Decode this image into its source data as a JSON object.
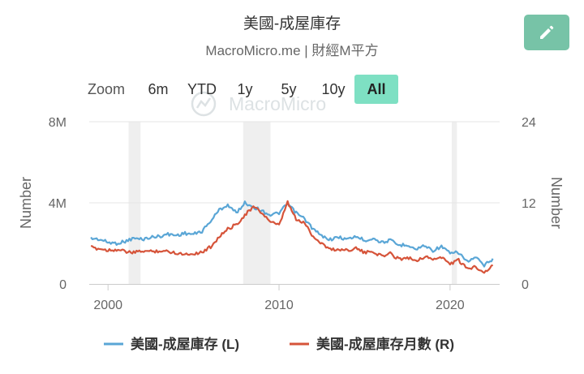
{
  "header": {
    "title": "美國-成屋庫存",
    "subtitle": "MacroMicro.me | 財經M平方"
  },
  "toolbar": {
    "zoom_label": "Zoom",
    "buttons": [
      "6m",
      "YTD",
      "1y",
      "5y",
      "10y",
      "All"
    ],
    "active": "All",
    "active_color": "#7ee0c3"
  },
  "watermark": "MacroMicro",
  "colors": {
    "left_series": "#5aa6d6",
    "right_series": "#d6543a",
    "recession_band": "#efefef",
    "edit_button": "#77c3a7"
  },
  "chart_data": {
    "type": "line",
    "x_label_years": [
      "2000",
      "2010",
      "2020"
    ],
    "x_range": [
      1998.9,
      2022.9
    ],
    "left_axis": {
      "title": "Number",
      "ticks": [
        "0",
        "4M",
        "8M"
      ],
      "range": [
        0,
        8000000
      ]
    },
    "right_axis": {
      "title": "Number",
      "ticks": [
        "0",
        "12",
        "24"
      ],
      "range": [
        0,
        24
      ]
    },
    "recession_bands": [
      [
        2001.2,
        2001.9
      ],
      [
        2007.9,
        2009.5
      ],
      [
        2020.1,
        2020.4
      ]
    ],
    "legend_position": "bottom",
    "series": [
      {
        "name": "美國-成屋庫存 (L)",
        "axis": "left",
        "points": [
          [
            1999.0,
            2250000
          ],
          [
            1999.5,
            2200000
          ],
          [
            2000.0,
            2050000
          ],
          [
            2000.5,
            2000000
          ],
          [
            2001.0,
            2100000
          ],
          [
            2001.5,
            2250000
          ],
          [
            2002.0,
            2200000
          ],
          [
            2002.5,
            2300000
          ],
          [
            2003.0,
            2350000
          ],
          [
            2003.5,
            2450000
          ],
          [
            2004.0,
            2400000
          ],
          [
            2004.5,
            2500000
          ],
          [
            2005.0,
            2450000
          ],
          [
            2005.5,
            2600000
          ],
          [
            2006.0,
            3100000
          ],
          [
            2006.5,
            3650000
          ],
          [
            2007.0,
            3900000
          ],
          [
            2007.5,
            3500000
          ],
          [
            2008.0,
            4000000
          ],
          [
            2008.5,
            3800000
          ],
          [
            2009.0,
            3600000
          ],
          [
            2009.5,
            3400000
          ],
          [
            2010.0,
            3500000
          ],
          [
            2010.5,
            3950000
          ],
          [
            2011.0,
            3500000
          ],
          [
            2011.5,
            3200000
          ],
          [
            2012.0,
            2700000
          ],
          [
            2012.5,
            2350000
          ],
          [
            2013.0,
            2200000
          ],
          [
            2013.5,
            2300000
          ],
          [
            2014.0,
            2200000
          ],
          [
            2014.5,
            2350000
          ],
          [
            2015.0,
            2150000
          ],
          [
            2015.5,
            2250000
          ],
          [
            2016.0,
            2050000
          ],
          [
            2016.5,
            2150000
          ],
          [
            2017.0,
            1900000
          ],
          [
            2017.5,
            1950000
          ],
          [
            2018.0,
            1700000
          ],
          [
            2018.5,
            1900000
          ],
          [
            2019.0,
            1650000
          ],
          [
            2019.5,
            1850000
          ],
          [
            2020.0,
            1500000
          ],
          [
            2020.5,
            1550000
          ],
          [
            2021.0,
            1100000
          ],
          [
            2021.5,
            1300000
          ],
          [
            2022.0,
            900000
          ],
          [
            2022.5,
            1250000
          ]
        ]
      },
      {
        "name": "美國-成屋庫存月數 (R)",
        "axis": "right",
        "points": [
          [
            1999.0,
            5.4
          ],
          [
            1999.5,
            5.2
          ],
          [
            2000.0,
            5.0
          ],
          [
            2000.5,
            5.1
          ],
          [
            2001.0,
            4.8
          ],
          [
            2001.5,
            4.6
          ],
          [
            2002.0,
            4.9
          ],
          [
            2002.5,
            4.8
          ],
          [
            2003.0,
            4.9
          ],
          [
            2003.5,
            4.8
          ],
          [
            2004.0,
            4.6
          ],
          [
            2004.5,
            4.4
          ],
          [
            2005.0,
            4.5
          ],
          [
            2005.5,
            4.7
          ],
          [
            2006.0,
            5.5
          ],
          [
            2006.5,
            7.0
          ],
          [
            2007.0,
            8.1
          ],
          [
            2007.5,
            8.8
          ],
          [
            2008.0,
            10.2
          ],
          [
            2008.5,
            11.4
          ],
          [
            2009.0,
            10.5
          ],
          [
            2009.5,
            9.2
          ],
          [
            2010.0,
            8.6
          ],
          [
            2010.5,
            12.1
          ],
          [
            2011.0,
            9.5
          ],
          [
            2011.5,
            9.0
          ],
          [
            2012.0,
            7.0
          ],
          [
            2012.5,
            6.0
          ],
          [
            2013.0,
            5.1
          ],
          [
            2013.5,
            5.1
          ],
          [
            2014.0,
            5.0
          ],
          [
            2014.5,
            5.3
          ],
          [
            2015.0,
            4.6
          ],
          [
            2015.5,
            4.8
          ],
          [
            2016.0,
            4.1
          ],
          [
            2016.5,
            4.5
          ],
          [
            2017.0,
            3.7
          ],
          [
            2017.5,
            3.9
          ],
          [
            2018.0,
            3.5
          ],
          [
            2018.5,
            4.0
          ],
          [
            2019.0,
            3.7
          ],
          [
            2019.5,
            3.9
          ],
          [
            2020.0,
            3.0
          ],
          [
            2020.5,
            3.5
          ],
          [
            2021.0,
            2.2
          ],
          [
            2021.5,
            2.6
          ],
          [
            2022.0,
            1.7
          ],
          [
            2022.5,
            2.8
          ]
        ]
      }
    ]
  }
}
